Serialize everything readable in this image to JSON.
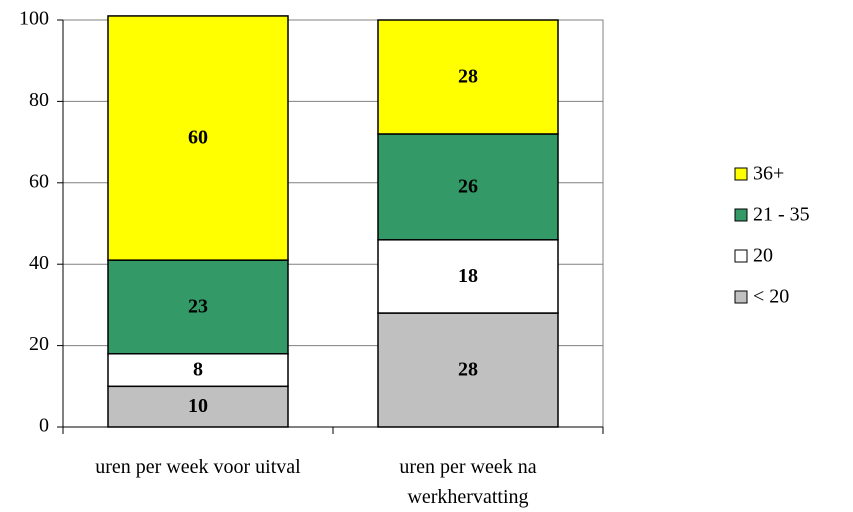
{
  "chart_data": {
    "type": "stacked_bar",
    "categories": [
      "uren per week voor uitval",
      "uren per week na werkhervatting"
    ],
    "series": [
      {
        "name": "< 20",
        "color": "#c0c0c0",
        "values": [
          10,
          28
        ]
      },
      {
        "name": "20",
        "color": "#ffffff",
        "values": [
          8,
          18
        ]
      },
      {
        "name": "21 - 35",
        "color": "#339966",
        "values": [
          23,
          26
        ]
      },
      {
        "name": "36+",
        "color": "#ffff00",
        "values": [
          60,
          28
        ]
      }
    ],
    "ylim": [
      0,
      100
    ],
    "yticks": [
      0,
      20,
      40,
      60,
      80,
      100
    ],
    "grid": true,
    "legend": "right"
  }
}
